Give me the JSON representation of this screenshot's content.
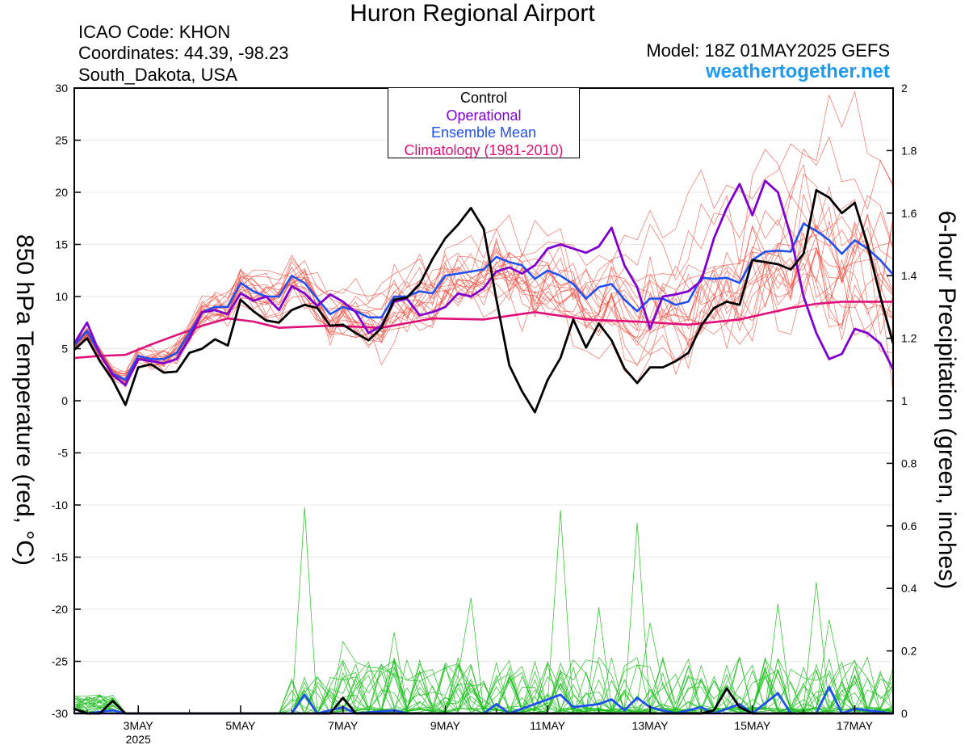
{
  "title": "Huron Regional Airport",
  "info": {
    "icao": "ICAO Code: KHON",
    "coords": "Coordinates: 44.39, -98.23",
    "location": "South_Dakota, USA"
  },
  "model": "Model: 18Z 01MAY2025 GEFS",
  "site": "weathertogether.net",
  "legend": [
    {
      "label": "Control",
      "color": "#000000"
    },
    {
      "label": "Operational",
      "color": "#8000d0"
    },
    {
      "label": "Ensemble Mean",
      "color": "#2050f0"
    },
    {
      "label": "Climatology (1981-2010)",
      "color": "#e0107a"
    }
  ],
  "chart_data": {
    "type": "line",
    "title": "Huron Regional Airport",
    "ylabel_left": "850 hPa Temperature (red, °C)",
    "ylabel_right": "6-hour Precipitation (green, inches)",
    "ylim_left": [
      -30,
      30
    ],
    "ylim_right": [
      0,
      2
    ],
    "y_ticks_left": [
      "30",
      "25",
      "20",
      "15",
      "10",
      "5",
      "0",
      "-5",
      "-10",
      "-15",
      "-20",
      "-25",
      "-30"
    ],
    "y_ticks_right": [
      "2",
      "1.8",
      "1.6",
      "1.4",
      "1.2",
      "1",
      "0.8",
      "0.6",
      "0.4",
      "0.2",
      "0"
    ],
    "x_ticks": [
      {
        "day": 3,
        "label": "3MAY",
        "sub": "2025"
      },
      {
        "day": 5,
        "label": "5MAY",
        "sub": ""
      },
      {
        "day": 7,
        "label": "7MAY",
        "sub": ""
      },
      {
        "day": 9,
        "label": "9MAY",
        "sub": ""
      },
      {
        "day": 11,
        "label": "11MAY",
        "sub": ""
      },
      {
        "day": 13,
        "label": "13MAY",
        "sub": ""
      },
      {
        "day": 15,
        "label": "15MAY",
        "sub": ""
      },
      {
        "day": 17,
        "label": "17MAY",
        "sub": ""
      }
    ],
    "xlim_days": [
      1.75,
      17.75
    ],
    "temperature": {
      "control": [
        [
          1.75,
          4.9
        ],
        [
          2.0,
          6.0
        ],
        [
          2.25,
          3.8
        ],
        [
          2.5,
          2.0
        ],
        [
          2.75,
          -0.4
        ],
        [
          3.0,
          3.2
        ],
        [
          3.25,
          3.5
        ],
        [
          3.5,
          2.7
        ],
        [
          3.75,
          2.8
        ],
        [
          4.0,
          4.6
        ],
        [
          4.25,
          5.0
        ],
        [
          4.5,
          5.9
        ],
        [
          4.75,
          5.3
        ],
        [
          5.0,
          9.7
        ],
        [
          5.25,
          8.6
        ],
        [
          5.5,
          7.7
        ],
        [
          5.75,
          7.5
        ],
        [
          6.0,
          8.7
        ],
        [
          6.25,
          9.2
        ],
        [
          6.5,
          8.9
        ],
        [
          6.75,
          7.2
        ],
        [
          7.0,
          7.3
        ],
        [
          7.25,
          6.5
        ],
        [
          7.5,
          5.8
        ],
        [
          7.75,
          7.0
        ],
        [
          8.0,
          9.7
        ],
        [
          8.25,
          9.9
        ],
        [
          8.5,
          11.2
        ],
        [
          8.75,
          13.6
        ],
        [
          9.0,
          15.6
        ],
        [
          9.25,
          16.9
        ],
        [
          9.5,
          18.5
        ],
        [
          9.75,
          16.5
        ],
        [
          10.0,
          9.7
        ],
        [
          10.25,
          3.4
        ],
        [
          10.5,
          0.9
        ],
        [
          10.75,
          -1.1
        ],
        [
          11.0,
          2.0
        ],
        [
          11.25,
          4.1
        ],
        [
          11.5,
          7.8
        ],
        [
          11.75,
          5.1
        ],
        [
          12.0,
          7.4
        ],
        [
          12.25,
          5.8
        ],
        [
          12.5,
          3.1
        ],
        [
          12.75,
          1.7
        ],
        [
          13.0,
          3.2
        ],
        [
          13.25,
          3.2
        ],
        [
          13.5,
          3.8
        ],
        [
          13.75,
          4.6
        ],
        [
          14.0,
          7.2
        ],
        [
          14.25,
          8.9
        ],
        [
          14.5,
          9.5
        ],
        [
          14.75,
          9.2
        ],
        [
          15.0,
          13.5
        ],
        [
          15.25,
          13.3
        ],
        [
          15.5,
          13.1
        ],
        [
          15.75,
          12.6
        ],
        [
          16.0,
          14.1
        ],
        [
          16.25,
          20.2
        ],
        [
          16.5,
          19.5
        ],
        [
          16.75,
          18.0
        ],
        [
          17.0,
          19.0
        ],
        [
          17.25,
          15.0
        ],
        [
          17.5,
          10.0
        ],
        [
          17.75,
          5.5
        ]
      ],
      "operational": [
        [
          1.75,
          5.5
        ],
        [
          2.0,
          7.5
        ],
        [
          2.25,
          4.5
        ],
        [
          2.5,
          2.5
        ],
        [
          2.75,
          1.5
        ],
        [
          3.0,
          4.0
        ],
        [
          3.25,
          3.8
        ],
        [
          3.5,
          3.6
        ],
        [
          3.75,
          4.0
        ],
        [
          4.0,
          6.0
        ],
        [
          4.25,
          8.5
        ],
        [
          4.5,
          8.7
        ],
        [
          4.75,
          8.3
        ],
        [
          5.0,
          10.3
        ],
        [
          5.25,
          9.6
        ],
        [
          5.5,
          10.0
        ],
        [
          5.75,
          8.7
        ],
        [
          6.0,
          11.0
        ],
        [
          6.25,
          10.3
        ],
        [
          6.5,
          9.1
        ],
        [
          6.75,
          10.2
        ],
        [
          7.0,
          9.5
        ],
        [
          7.25,
          8.5
        ],
        [
          7.5,
          6.5
        ],
        [
          7.75,
          7.2
        ],
        [
          8.0,
          9.5
        ],
        [
          8.25,
          9.8
        ],
        [
          8.5,
          8.2
        ],
        [
          8.75,
          8.5
        ],
        [
          9.0,
          9.0
        ],
        [
          9.25,
          10.3
        ],
        [
          9.5,
          10.0
        ],
        [
          9.75,
          10.8
        ],
        [
          10.0,
          12.4
        ],
        [
          10.25,
          12.8
        ],
        [
          10.5,
          12.2
        ],
        [
          10.75,
          13.0
        ],
        [
          11.0,
          14.6
        ],
        [
          11.25,
          15.0
        ],
        [
          11.5,
          14.6
        ],
        [
          11.75,
          14.2
        ],
        [
          12.0,
          14.8
        ],
        [
          12.25,
          16.6
        ],
        [
          12.5,
          13.0
        ],
        [
          12.75,
          10.9
        ],
        [
          13.0,
          6.9
        ],
        [
          13.25,
          10.0
        ],
        [
          13.5,
          10.2
        ],
        [
          13.75,
          10.5
        ],
        [
          14.0,
          11.5
        ],
        [
          14.25,
          15.6
        ],
        [
          14.5,
          18.5
        ],
        [
          14.75,
          20.8
        ],
        [
          15.0,
          17.8
        ],
        [
          15.25,
          21.1
        ],
        [
          15.5,
          20.0
        ],
        [
          15.75,
          15.8
        ],
        [
          16.0,
          10.0
        ],
        [
          16.25,
          6.5
        ],
        [
          16.5,
          4.0
        ],
        [
          16.75,
          4.5
        ],
        [
          17.0,
          6.9
        ],
        [
          17.25,
          6.5
        ],
        [
          17.5,
          5.5
        ],
        [
          17.75,
          3.0
        ]
      ],
      "mean": [
        [
          1.75,
          5.3
        ],
        [
          2.0,
          6.7
        ],
        [
          2.25,
          4.5
        ],
        [
          2.5,
          2.6
        ],
        [
          2.75,
          2.0
        ],
        [
          3.0,
          4.3
        ],
        [
          3.25,
          4.0
        ],
        [
          3.5,
          4.0
        ],
        [
          3.75,
          4.6
        ],
        [
          4.0,
          6.5
        ],
        [
          4.25,
          8.5
        ],
        [
          4.5,
          9.0
        ],
        [
          4.75,
          9.0
        ],
        [
          5.0,
          11.3
        ],
        [
          5.25,
          10.5
        ],
        [
          5.5,
          10.0
        ],
        [
          5.75,
          10.0
        ],
        [
          6.0,
          12.0
        ],
        [
          6.25,
          11.3
        ],
        [
          6.5,
          9.8
        ],
        [
          6.75,
          8.3
        ],
        [
          7.0,
          9.0
        ],
        [
          7.25,
          8.6
        ],
        [
          7.5,
          8.0
        ],
        [
          7.75,
          8.0
        ],
        [
          8.0,
          10.0
        ],
        [
          8.25,
          10.0
        ],
        [
          8.5,
          10.5
        ],
        [
          8.75,
          10.3
        ],
        [
          9.0,
          12.0
        ],
        [
          9.25,
          12.2
        ],
        [
          9.5,
          12.4
        ],
        [
          9.75,
          12.6
        ],
        [
          10.0,
          13.8
        ],
        [
          10.25,
          13.3
        ],
        [
          10.5,
          13.0
        ],
        [
          10.75,
          11.7
        ],
        [
          11.0,
          12.5
        ],
        [
          11.25,
          12.0
        ],
        [
          11.5,
          11.2
        ],
        [
          11.75,
          9.8
        ],
        [
          12.0,
          10.9
        ],
        [
          12.25,
          11.2
        ],
        [
          12.5,
          9.7
        ],
        [
          12.75,
          8.6
        ],
        [
          13.0,
          9.8
        ],
        [
          13.25,
          9.8
        ],
        [
          13.5,
          9.2
        ],
        [
          13.75,
          9.5
        ],
        [
          14.0,
          11.8
        ],
        [
          14.25,
          11.7
        ],
        [
          14.5,
          11.8
        ],
        [
          14.75,
          11.3
        ],
        [
          15.0,
          13.5
        ],
        [
          15.25,
          14.3
        ],
        [
          15.5,
          14.4
        ],
        [
          15.75,
          14.3
        ],
        [
          16.0,
          17.0
        ],
        [
          16.25,
          16.3
        ],
        [
          16.5,
          15.4
        ],
        [
          16.75,
          14.1
        ],
        [
          17.0,
          15.4
        ],
        [
          17.25,
          14.6
        ],
        [
          17.5,
          13.5
        ],
        [
          17.75,
          12.1
        ]
      ],
      "climatology": [
        [
          1.75,
          4.1
        ],
        [
          2.25,
          4.3
        ],
        [
          2.75,
          4.4
        ],
        [
          3.25,
          5.4
        ],
        [
          3.75,
          6.3
        ],
        [
          4.25,
          7.2
        ],
        [
          4.75,
          7.9
        ],
        [
          5.25,
          7.6
        ],
        [
          5.75,
          7.0
        ],
        [
          6.75,
          7.2
        ],
        [
          7.75,
          7.0
        ],
        [
          8.75,
          7.9
        ],
        [
          9.75,
          7.8
        ],
        [
          10.75,
          8.5
        ],
        [
          11.75,
          7.8
        ],
        [
          12.75,
          7.6
        ],
        [
          13.75,
          7.3
        ],
        [
          14.75,
          7.8
        ],
        [
          15.75,
          8.9
        ],
        [
          16.25,
          9.3
        ],
        [
          16.75,
          9.5
        ],
        [
          17.75,
          9.5
        ]
      ]
    },
    "precipitation": {
      "control": [
        [
          1.75,
          0.015
        ],
        [
          2.0,
          0.0
        ],
        [
          2.25,
          0.0
        ],
        [
          2.5,
          0.04
        ],
        [
          2.75,
          0.0
        ],
        [
          3.0,
          0.0
        ],
        [
          6.75,
          0.0
        ],
        [
          7.0,
          0.05
        ],
        [
          7.25,
          0.0
        ],
        [
          14.0,
          0.0
        ],
        [
          14.25,
          0.01
        ],
        [
          14.5,
          0.08
        ],
        [
          14.75,
          0.02
        ],
        [
          15.0,
          0.0
        ],
        [
          17.75,
          0.0
        ]
      ],
      "operational": [
        [
          1.75,
          0.0
        ],
        [
          17.75,
          0.0
        ]
      ],
      "mean": [
        [
          1.75,
          0.015
        ],
        [
          2.0,
          0.0
        ],
        [
          2.5,
          0.01
        ],
        [
          2.75,
          0.0
        ],
        [
          6.0,
          0.0
        ],
        [
          6.25,
          0.06
        ],
        [
          6.5,
          0.0
        ],
        [
          7.0,
          0.02
        ],
        [
          7.25,
          0.0
        ],
        [
          8.0,
          0.01
        ],
        [
          8.25,
          0.0
        ],
        [
          9.75,
          0.0
        ],
        [
          10.0,
          0.03
        ],
        [
          10.25,
          0.0
        ],
        [
          11.25,
          0.06
        ],
        [
          11.5,
          0.02
        ],
        [
          12.0,
          0.03
        ],
        [
          12.25,
          0.045
        ],
        [
          12.5,
          0.01
        ],
        [
          12.75,
          0.05
        ],
        [
          13.0,
          0.02
        ],
        [
          13.25,
          0.01
        ],
        [
          13.5,
          0.0
        ],
        [
          14.0,
          0.02
        ],
        [
          14.25,
          0.0
        ],
        [
          14.75,
          0.03
        ],
        [
          15.0,
          0.0
        ],
        [
          15.5,
          0.065
        ],
        [
          15.75,
          0.0
        ],
        [
          16.25,
          0.0
        ],
        [
          16.5,
          0.085
        ],
        [
          16.75,
          0.0
        ],
        [
          17.0,
          0.015
        ],
        [
          17.75,
          0.0
        ]
      ]
    },
    "ensemble_color_temp": "#f04030",
    "ensemble_color_precip": "#20c020"
  }
}
